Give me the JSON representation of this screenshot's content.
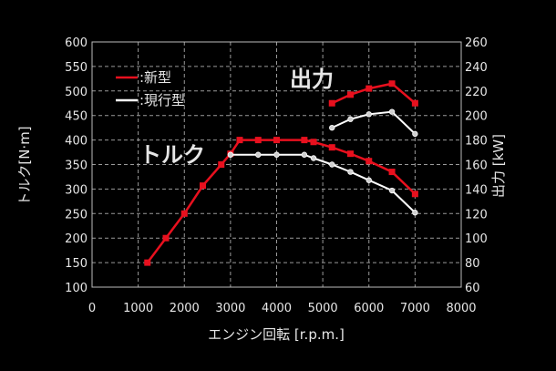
{
  "chart_data": {
    "type": "line",
    "title": "",
    "xlabel": "エンジン回転 [r.p.m.]",
    "ylabel": "トルク[N·m]",
    "y2label": "出力 [kW]",
    "xlim": [
      0,
      8000
    ],
    "ylim": [
      100,
      600
    ],
    "y2lim": [
      60,
      260
    ],
    "x_ticks": [
      "0",
      "1000",
      "2000",
      "3000",
      "4000",
      "5000",
      "6000",
      "7000",
      "8000"
    ],
    "y_ticks": [
      "100",
      "150",
      "200",
      "250",
      "300",
      "350",
      "400",
      "450",
      "500",
      "550",
      "600"
    ],
    "y2_ticks": [
      "60",
      "80",
      "100",
      "120",
      "140",
      "160",
      "180",
      "200",
      "220",
      "240",
      "260"
    ],
    "grid": true,
    "legend": [
      {
        "label": ":新型",
        "color": "#e8101e"
      },
      {
        "label": ":現行型",
        "color": "#ffffff"
      }
    ],
    "annotations": [
      {
        "text": "トルク",
        "x": 1100,
        "y": 372
      },
      {
        "text": "出力",
        "x": 4400,
        "y": 525
      }
    ],
    "series": [
      {
        "name": "新型 トルク",
        "axis": "left",
        "color": "#e8101e",
        "marker": "square",
        "x": [
          1200,
          1600,
          2000,
          2400,
          2800,
          3000,
          3200,
          3600,
          4000,
          4600,
          4800,
          5200,
          5600,
          6000,
          6500,
          7000
        ],
        "values": [
          150,
          200,
          250,
          307,
          350,
          372,
          400,
          400,
          400,
          400,
          396,
          385,
          372,
          357,
          335,
          290
        ]
      },
      {
        "name": "現行型 トルク",
        "axis": "left",
        "color": "#ffffff",
        "marker": "circle",
        "x": [
          3000,
          3600,
          4000,
          4600,
          4800,
          5200,
          5600,
          6000,
          6500,
          7000
        ],
        "values": [
          370,
          370,
          370,
          370,
          363,
          350,
          335,
          318,
          297,
          252
        ]
      },
      {
        "name": "新型 出力",
        "axis": "right",
        "color": "#e8101e",
        "marker": "square",
        "x": [
          5200,
          5600,
          6000,
          6500,
          7000
        ],
        "values": [
          210,
          217,
          222,
          226,
          210
        ]
      },
      {
        "name": "現行型 出力",
        "axis": "right",
        "color": "#ffffff",
        "marker": "circle",
        "x": [
          5200,
          5600,
          6000,
          6500,
          7000
        ],
        "values": [
          190,
          197,
          201,
          203,
          185
        ]
      }
    ]
  }
}
